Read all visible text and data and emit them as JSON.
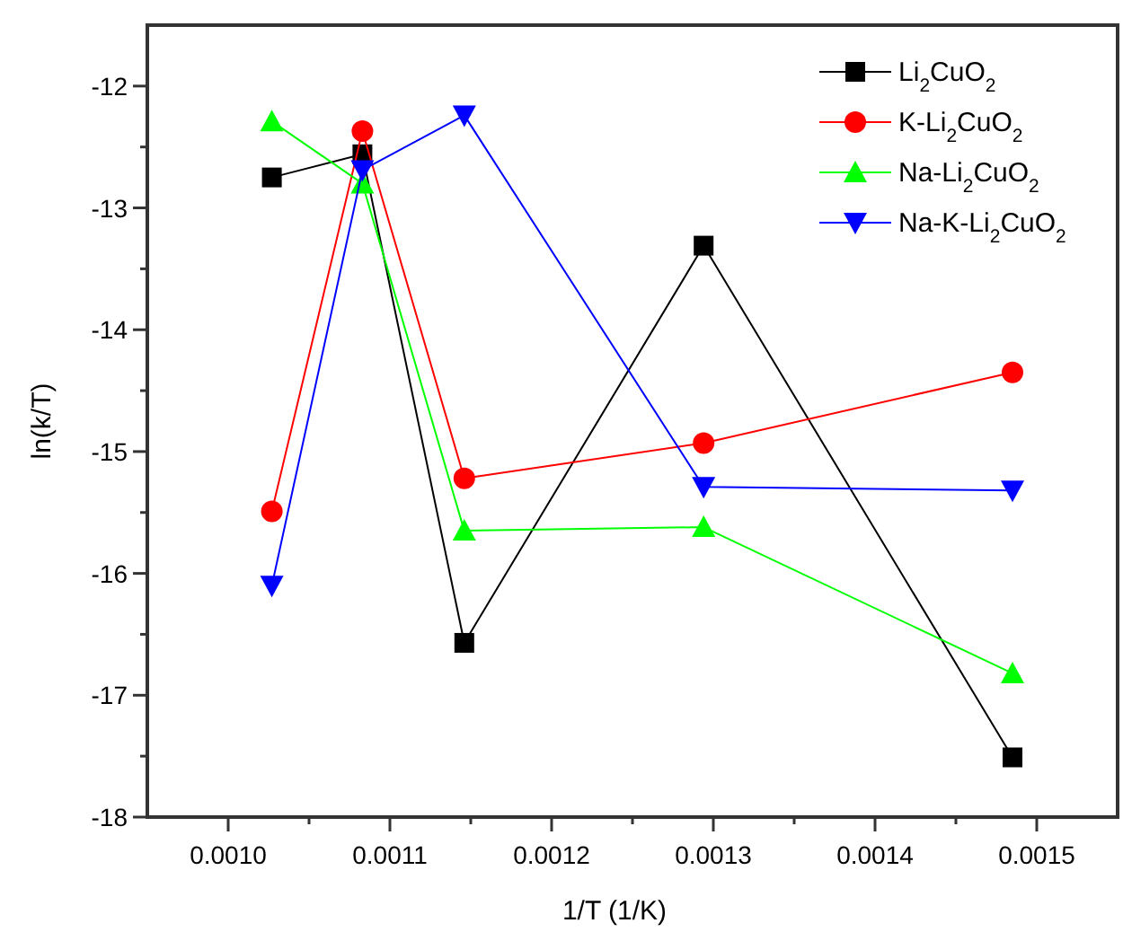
{
  "chart_data": {
    "type": "line",
    "xlabel": "1/T (1/K)",
    "ylabel": "ln(k/T)",
    "x": [
      0.001027,
      0.001083,
      0.001146,
      0.001294,
      0.001485
    ],
    "xlim": [
      0.00095,
      0.00155
    ],
    "ylim": [
      -18,
      -11.5
    ],
    "xticks": [
      {
        "value": 0.001,
        "label": "0.0010"
      },
      {
        "value": 0.00105,
        "label": null
      },
      {
        "value": 0.0011,
        "label": "0.0011"
      },
      {
        "value": 0.00115,
        "label": null
      },
      {
        "value": 0.0012,
        "label": "0.0012"
      },
      {
        "value": 0.00125,
        "label": null
      },
      {
        "value": 0.0013,
        "label": "0.0013"
      },
      {
        "value": 0.00135,
        "label": null
      },
      {
        "value": 0.0014,
        "label": "0.0014"
      },
      {
        "value": 0.00145,
        "label": null
      },
      {
        "value": 0.0015,
        "label": "0.0015"
      }
    ],
    "yticks": [
      -18,
      {
        "value": -17.5,
        "label": null
      },
      -17,
      {
        "value": -16.5,
        "label": null
      },
      -16,
      {
        "value": -15.5,
        "label": null
      },
      -15,
      {
        "value": -14.5,
        "label": null
      },
      -14,
      {
        "value": -13.5,
        "label": null
      },
      -13,
      {
        "value": -12.5,
        "label": null
      },
      -12
    ],
    "legend": "top right",
    "grid": false,
    "series": [
      {
        "name": "Li$_{2}$CuO$_{2}$",
        "color": "#000000",
        "marker": "square",
        "values": [
          -12.75,
          -12.56,
          -16.57,
          -13.31,
          -17.51
        ]
      },
      {
        "name": "K-Li$_{2}$CuO$_{2}$",
        "color": "#ff0000",
        "marker": "circle",
        "values": [
          -15.49,
          -12.37,
          -15.22,
          -14.93,
          -14.35
        ]
      },
      {
        "name": "Na-Li$_{2}$CuO$_{2}$",
        "color": "#00ff00",
        "marker": "triangle",
        "values": [
          -12.29,
          -12.8,
          -15.65,
          -15.62,
          -16.82
        ]
      },
      {
        "name": "Na-K-Li$_{2}$CuO$_{2}$",
        "color": "#0000ff",
        "marker": "triangle-down",
        "values": [
          -16.1,
          -12.69,
          -12.24,
          -15.29,
          -15.32
        ]
      }
    ]
  }
}
